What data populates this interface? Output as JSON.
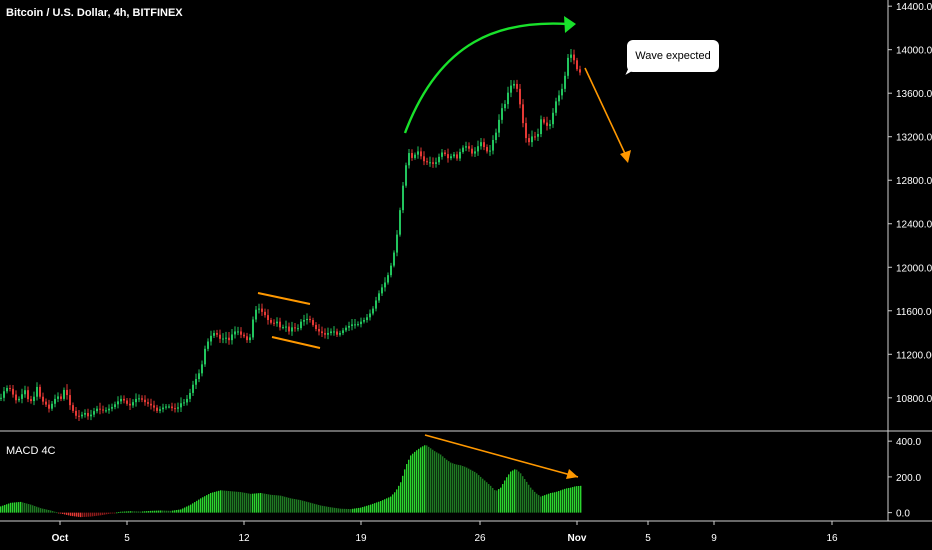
{
  "header": {
    "title": "Bitcoin / U.S. Dollar, 4h, BITFINEX"
  },
  "annotation": {
    "text": "Wave expected"
  },
  "indicator": {
    "label": "MACD 4C"
  },
  "colors": {
    "background": "#000000",
    "up": "#22c55e",
    "down": "#e53935",
    "annotation_line": "#ff9800",
    "wave_arc": "#19e22b",
    "axis_text": "#ffffff",
    "separator": "#cfcfcf"
  },
  "chart_data": [
    {
      "type": "candlestick",
      "title": "Bitcoin / U.S. Dollar, 4h, BITFINEX",
      "y_ticks": [
        "14400.00",
        "14000.00",
        "13600.00",
        "13200.00",
        "12800.00",
        "12400.00",
        "12000.00",
        "11600.00",
        "11200.00",
        "10800.00"
      ],
      "ylim": [
        10550,
        14420
      ],
      "x_ticks": [
        "Oct",
        "5",
        "12",
        "19",
        "26",
        "Nov",
        "5",
        "9",
        "16"
      ],
      "grid": false,
      "price_path": [
        [
          0,
          10800
        ],
        [
          4,
          10880
        ],
        [
          8,
          10900
        ],
        [
          12,
          10830
        ],
        [
          16,
          10760
        ],
        [
          20,
          10820
        ],
        [
          24,
          10870
        ],
        [
          28,
          10760
        ],
        [
          32,
          10780
        ],
        [
          36,
          10900
        ],
        [
          40,
          10780
        ],
        [
          44,
          10750
        ],
        [
          48,
          10700
        ],
        [
          52,
          10760
        ],
        [
          56,
          10820
        ],
        [
          60,
          10790
        ],
        [
          64,
          10900
        ],
        [
          68,
          10750
        ],
        [
          72,
          10680
        ],
        [
          76,
          10620
        ],
        [
          80,
          10640
        ],
        [
          84,
          10660
        ],
        [
          88,
          10620
        ],
        [
          92,
          10670
        ],
        [
          96,
          10700
        ],
        [
          100,
          10690
        ],
        [
          104,
          10680
        ],
        [
          108,
          10700
        ],
        [
          112,
          10720
        ],
        [
          116,
          10760
        ],
        [
          120,
          10790
        ],
        [
          124,
          10770
        ],
        [
          128,
          10720
        ],
        [
          132,
          10760
        ],
        [
          136,
          10800
        ],
        [
          140,
          10790
        ],
        [
          144,
          10760
        ],
        [
          148,
          10740
        ],
        [
          152,
          10720
        ],
        [
          156,
          10680
        ],
        [
          160,
          10700
        ],
        [
          164,
          10720
        ],
        [
          168,
          10720
        ],
        [
          172,
          10700
        ],
        [
          176,
          10700
        ],
        [
          180,
          10750
        ],
        [
          184,
          10760
        ],
        [
          188,
          10820
        ],
        [
          192,
          10920
        ],
        [
          196,
          10990
        ],
        [
          200,
          11060
        ],
        [
          204,
          11250
        ],
        [
          208,
          11340
        ],
        [
          212,
          11400
        ],
        [
          216,
          11380
        ],
        [
          220,
          11330
        ],
        [
          224,
          11360
        ],
        [
          228,
          11330
        ],
        [
          232,
          11400
        ],
        [
          236,
          11420
        ],
        [
          240,
          11380
        ],
        [
          244,
          11360
        ],
        [
          248,
          11300
        ],
        [
          252,
          11520
        ],
        [
          256,
          11640
        ],
        [
          260,
          11600
        ],
        [
          264,
          11560
        ],
        [
          268,
          11500
        ],
        [
          272,
          11480
        ],
        [
          276,
          11500
        ],
        [
          280,
          11430
        ],
        [
          284,
          11470
        ],
        [
          288,
          11410
        ],
        [
          292,
          11460
        ],
        [
          296,
          11420
        ],
        [
          300,
          11500
        ],
        [
          304,
          11520
        ],
        [
          308,
          11530
        ],
        [
          312,
          11470
        ],
        [
          316,
          11420
        ],
        [
          320,
          11400
        ],
        [
          324,
          11380
        ],
        [
          328,
          11400
        ],
        [
          332,
          11420
        ],
        [
          336,
          11380
        ],
        [
          340,
          11400
        ],
        [
          344,
          11440
        ],
        [
          348,
          11460
        ],
        [
          352,
          11480
        ],
        [
          356,
          11470
        ],
        [
          360,
          11500
        ],
        [
          364,
          11520
        ],
        [
          368,
          11560
        ],
        [
          372,
          11620
        ],
        [
          376,
          11720
        ],
        [
          380,
          11800
        ],
        [
          384,
          11860
        ],
        [
          388,
          11950
        ],
        [
          392,
          12080
        ],
        [
          396,
          12300
        ],
        [
          400,
          12600
        ],
        [
          404,
          12900
        ],
        [
          408,
          13050
        ],
        [
          412,
          12990
        ],
        [
          416,
          13080
        ],
        [
          420,
          13020
        ],
        [
          424,
          12960
        ],
        [
          428,
          12970
        ],
        [
          432,
          12950
        ],
        [
          436,
          12970
        ],
        [
          440,
          13060
        ],
        [
          444,
          13040
        ],
        [
          448,
          12990
        ],
        [
          452,
          13050
        ],
        [
          456,
          13000
        ],
        [
          460,
          13080
        ],
        [
          464,
          13120
        ],
        [
          468,
          13090
        ],
        [
          472,
          13030
        ],
        [
          476,
          13100
        ],
        [
          480,
          13150
        ],
        [
          484,
          13090
        ],
        [
          488,
          13040
        ],
        [
          492,
          13170
        ],
        [
          496,
          13260
        ],
        [
          500,
          13450
        ],
        [
          504,
          13500
        ],
        [
          508,
          13640
        ],
        [
          512,
          13700
        ],
        [
          516,
          13640
        ],
        [
          520,
          13450
        ],
        [
          524,
          13200
        ],
        [
          528,
          13150
        ],
        [
          532,
          13220
        ],
        [
          536,
          13180
        ],
        [
          540,
          13360
        ],
        [
          544,
          13320
        ],
        [
          548,
          13280
        ],
        [
          552,
          13420
        ],
        [
          556,
          13560
        ],
        [
          560,
          13600
        ],
        [
          564,
          13760
        ],
        [
          568,
          13980
        ],
        [
          572,
          13930
        ],
        [
          576,
          13820
        ],
        [
          580,
          13780
        ]
      ]
    },
    {
      "type": "bar",
      "title": "MACD 4C",
      "y_ticks": [
        "400.0",
        "200.0",
        "0.0"
      ],
      "ylim": [
        -30,
        440
      ],
      "values_path": [
        [
          0,
          35
        ],
        [
          10,
          55
        ],
        [
          20,
          60
        ],
        [
          30,
          45
        ],
        [
          40,
          25
        ],
        [
          50,
          12
        ],
        [
          60,
          -5
        ],
        [
          70,
          -18
        ],
        [
          80,
          -25
        ],
        [
          90,
          -22
        ],
        [
          100,
          -15
        ],
        [
          110,
          -5
        ],
        [
          120,
          5
        ],
        [
          130,
          8
        ],
        [
          140,
          6
        ],
        [
          150,
          10
        ],
        [
          160,
          12
        ],
        [
          170,
          10
        ],
        [
          180,
          18
        ],
        [
          190,
          45
        ],
        [
          200,
          80
        ],
        [
          210,
          110
        ],
        [
          220,
          125
        ],
        [
          230,
          120
        ],
        [
          240,
          115
        ],
        [
          250,
          105
        ],
        [
          260,
          110
        ],
        [
          270,
          100
        ],
        [
          280,
          95
        ],
        [
          290,
          80
        ],
        [
          300,
          70
        ],
        [
          310,
          55
        ],
        [
          320,
          40
        ],
        [
          330,
          30
        ],
        [
          340,
          22
        ],
        [
          350,
          20
        ],
        [
          360,
          28
        ],
        [
          370,
          45
        ],
        [
          380,
          65
        ],
        [
          390,
          90
        ],
        [
          395,
          120
        ],
        [
          400,
          170
        ],
        [
          405,
          260
        ],
        [
          410,
          320
        ],
        [
          415,
          345
        ],
        [
          420,
          365
        ],
        [
          425,
          380
        ],
        [
          430,
          360
        ],
        [
          435,
          340
        ],
        [
          440,
          325
        ],
        [
          445,
          300
        ],
        [
          450,
          280
        ],
        [
          455,
          270
        ],
        [
          460,
          265
        ],
        [
          465,
          255
        ],
        [
          470,
          240
        ],
        [
          475,
          225
        ],
        [
          480,
          200
        ],
        [
          485,
          175
        ],
        [
          490,
          150
        ],
        [
          495,
          120
        ],
        [
          500,
          140
        ],
        [
          505,
          190
        ],
        [
          510,
          230
        ],
        [
          515,
          245
        ],
        [
          520,
          220
        ],
        [
          525,
          180
        ],
        [
          530,
          140
        ],
        [
          535,
          110
        ],
        [
          540,
          90
        ],
        [
          545,
          100
        ],
        [
          550,
          110
        ],
        [
          555,
          115
        ],
        [
          560,
          125
        ],
        [
          565,
          135
        ],
        [
          570,
          140
        ],
        [
          575,
          148
        ],
        [
          580,
          150
        ]
      ]
    }
  ],
  "drawings": {
    "pattern": "descending channel",
    "divergence": "bearish",
    "projection": "down"
  }
}
